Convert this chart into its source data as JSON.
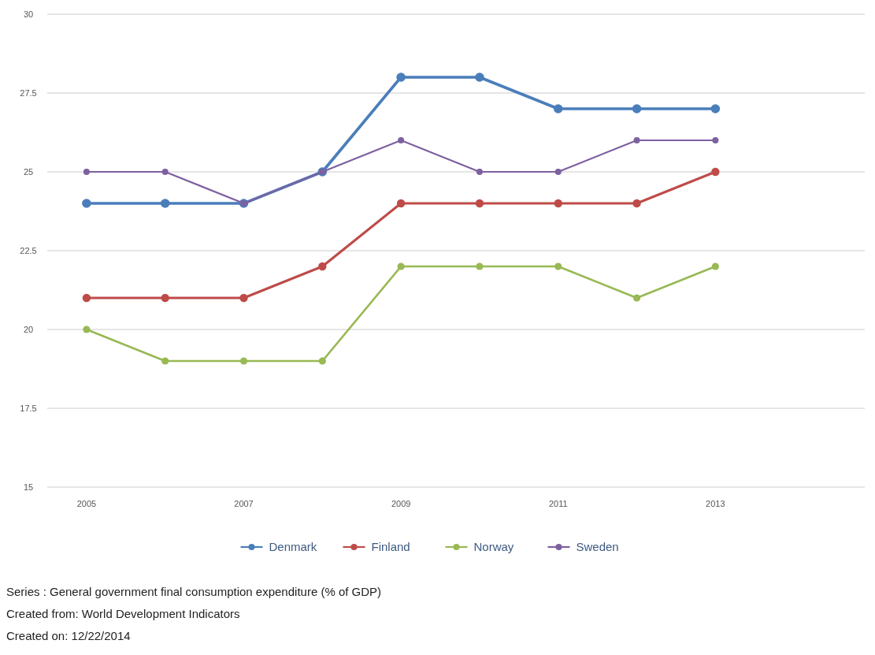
{
  "chart_data": {
    "type": "line",
    "x": [
      2005,
      2006,
      2007,
      2008,
      2009,
      2010,
      2011,
      2012,
      2013
    ],
    "series": [
      {
        "name": "Denmark",
        "color": "#4a7ebb",
        "values": [
          24,
          24,
          24,
          25,
          28,
          28,
          27,
          27,
          27
        ]
      },
      {
        "name": "Finland",
        "color": "#be4b48",
        "values": [
          21,
          21,
          21,
          22,
          24,
          24,
          24,
          24,
          25
        ]
      },
      {
        "name": "Norway",
        "color": "#98b954",
        "values": [
          20,
          19,
          19,
          19,
          22,
          22,
          22,
          21,
          22
        ]
      },
      {
        "name": "Sweden",
        "color": "#7d60a0",
        "values": [
          25,
          25,
          24,
          25,
          26,
          25,
          25,
          26,
          26
        ]
      }
    ],
    "xlim": [
      2004.5,
      2014.9
    ],
    "xticks": [
      2005,
      2007,
      2009,
      2011,
      2013
    ],
    "ylim": [
      15,
      30
    ],
    "yticks": [
      15,
      17.5,
      20,
      22.5,
      25,
      27.5,
      30
    ],
    "grid": "y",
    "legend": "bottom",
    "marker": "circle",
    "line_style": "solid",
    "annotations": [
      "Series : General government final consumption expenditure (% of GDP)",
      "Created from: World Development Indicators",
      "Created on: 12/22/2014"
    ]
  }
}
